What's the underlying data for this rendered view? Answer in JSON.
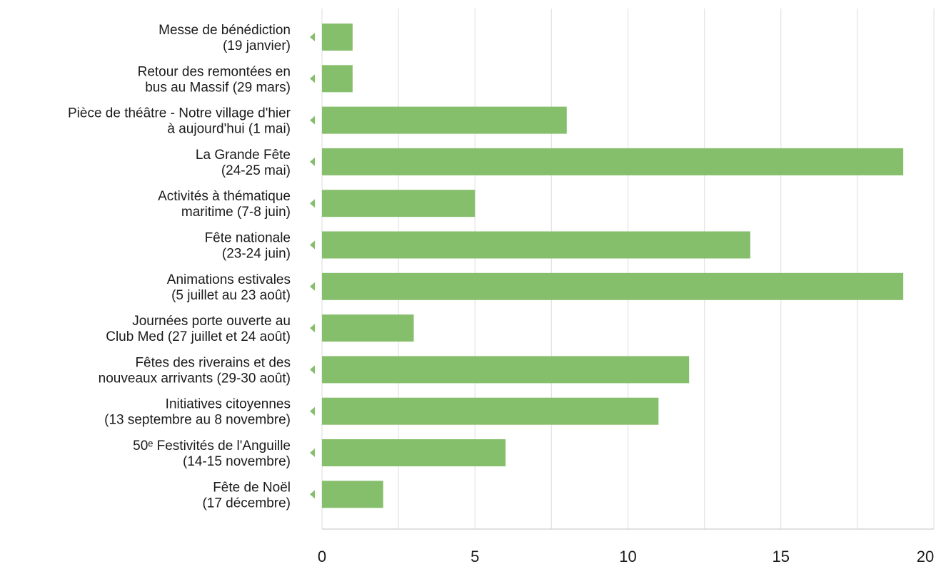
{
  "chart_data": {
    "type": "bar",
    "orientation": "horizontal",
    "categories": [
      [
        "Messe de bénédiction",
        "(19 janvier)"
      ],
      [
        "Retour des remontées en",
        "bus au Massif (29 mars)"
      ],
      [
        "Pièce de théâtre - Notre village d'hier",
        "à aujourd'hui (1 mai)"
      ],
      [
        "La Grande Fête",
        "(24-25 mai)"
      ],
      [
        "Activités à thématique",
        "maritime (7-8 juin)"
      ],
      [
        "Fête nationale",
        "(23-24 juin)"
      ],
      [
        "Animations estivales",
        "(5 juillet au 23 août)"
      ],
      [
        "Journées porte ouverte au",
        "Club Med (27 juillet et 24 août)"
      ],
      [
        "Fêtes des riverains et des",
        "nouveaux arrivants (29-30 août)"
      ],
      [
        "Initiatives citoyennes",
        "(13 septembre au 8 novembre)"
      ],
      [
        "50ᵉ Festivités de l'Anguille",
        "(14-15 novembre)"
      ],
      [
        "Fête de Noël",
        "(17 décembre)"
      ]
    ],
    "values": [
      1,
      1,
      8,
      19,
      5,
      14,
      19,
      3,
      12,
      11,
      6,
      2
    ],
    "xlim": [
      0,
      20
    ],
    "xticks": [
      0,
      5,
      10,
      15,
      20
    ],
    "grid": true,
    "title": "",
    "xlabel": "",
    "ylabel": "",
    "colors": {
      "bar": "#86bf6c",
      "marker": "#86bf6c",
      "grid": "#e3e3e3",
      "axis": "#cfcfcf"
    }
  }
}
